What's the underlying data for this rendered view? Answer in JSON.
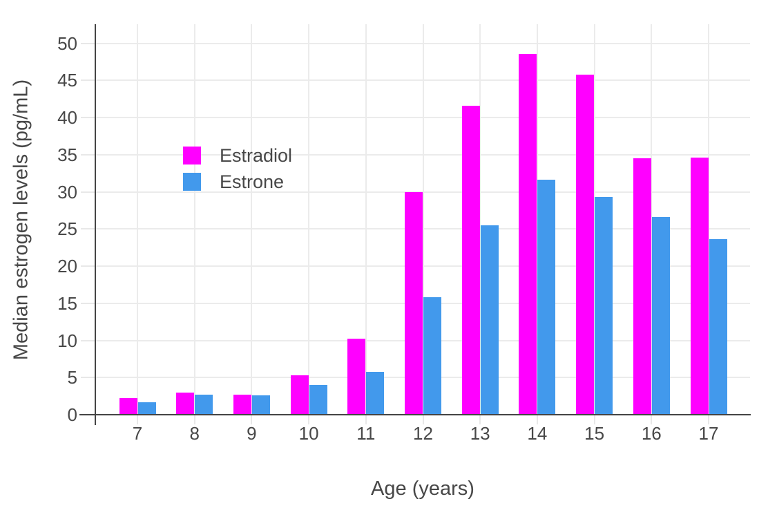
{
  "chart_data": {
    "type": "bar",
    "title": "",
    "xlabel": "Age (years)",
    "ylabel": "Median estrogen levels (pg/mL)",
    "categories": [
      "7",
      "8",
      "9",
      "10",
      "11",
      "12",
      "13",
      "14",
      "15",
      "16",
      "17"
    ],
    "series": [
      {
        "name": "Estradiol",
        "color": "#ff00ff",
        "values": [
          2.2,
          3.0,
          2.7,
          5.3,
          10.2,
          30.0,
          41.6,
          48.6,
          45.8,
          34.5,
          34.6
        ]
      },
      {
        "name": "Estrone",
        "color": "#4299ec",
        "values": [
          1.7,
          2.7,
          2.6,
          4.0,
          5.8,
          15.8,
          25.5,
          31.6,
          29.3,
          26.6,
          23.6
        ]
      }
    ],
    "ylim": [
      0,
      50
    ],
    "yticks": [
      0,
      5,
      10,
      15,
      20,
      25,
      30,
      35,
      40,
      45,
      50
    ],
    "grid": true,
    "legend_position": "inside-upper-left",
    "colors": {
      "axis_line": "#444444",
      "grid_line": "#ebebeb",
      "tick_mark": "#e8e8e8",
      "text": "#484848",
      "background": "#ffffff"
    }
  }
}
